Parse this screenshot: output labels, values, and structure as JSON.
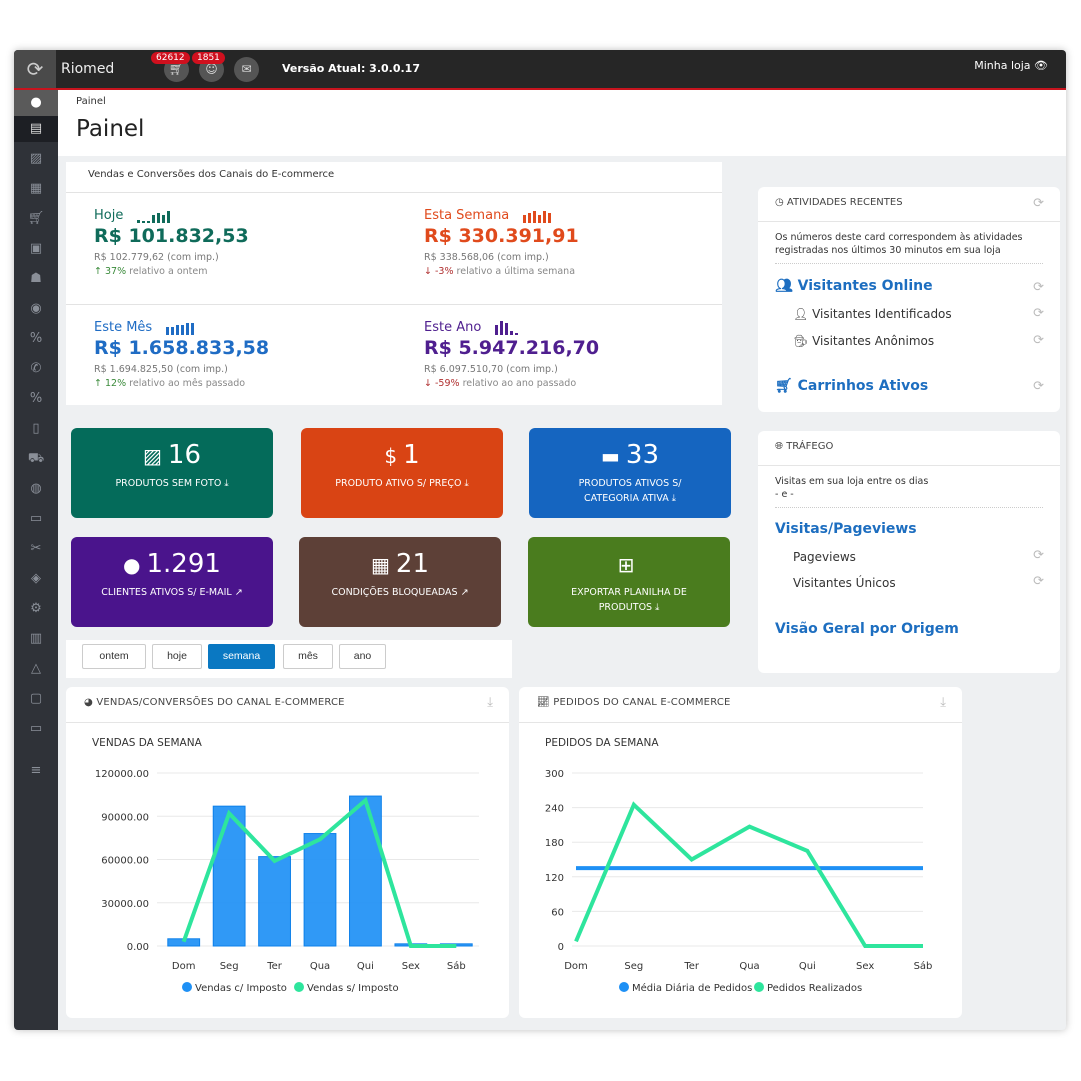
{
  "topbar": {
    "brand": "Riomed",
    "cart_badge": "62612",
    "user_badge": "1851",
    "version": "Versão Atual: 3.0.0.17",
    "store_link": "Minha loja"
  },
  "header": {
    "breadcrumb": "Painel",
    "title": "Painel"
  },
  "sales": {
    "title": "Vendas e Conversões dos Canais do E-commerce",
    "kpis": [
      {
        "label": "Hoje",
        "value": "R$ 101.832,53",
        "with_tax": "R$ 102.779,62 (com imp.)",
        "pct": "37%",
        "relative": "relativo a ontem",
        "trend": "up",
        "color": "#0f6b5a"
      },
      {
        "label": "Esta Semana",
        "value": "R$ 330.391,91",
        "with_tax": "R$ 338.568,06 (com imp.)",
        "pct": "-3%",
        "relative": "relativo a última semana",
        "trend": "down",
        "color": "#e04a1c"
      },
      {
        "label": "Este Mês",
        "value": "R$ 1.658.833,58",
        "with_tax": "R$ 1.694.825,50 (com imp.)",
        "pct": "12%",
        "relative": "relativo ao mês passado",
        "trend": "up",
        "color": "#1f6cc4"
      },
      {
        "label": "Este Ano",
        "value": "R$ 5.947.216,70",
        "with_tax": "R$ 6.097.510,70 (com imp.)",
        "pct": "-59%",
        "relative": "relativo ao ano passado",
        "trend": "down",
        "color": "#4f1f8f"
      }
    ]
  },
  "tiles": [
    {
      "value": "16",
      "label": "PRODUTOS SEM FOTO",
      "icon": "image-icon",
      "color": "#046b5a"
    },
    {
      "value": "1",
      "label": "PRODUTO ATIVO S/ PREÇO",
      "icon": "dollar-icon",
      "color": "#d94414"
    },
    {
      "value": "33",
      "label": "PRODUTOS ATIVOS S/ CATEGORIA ATIVA",
      "icon": "archive-icon",
      "color": "#1565c0"
    },
    {
      "value": "1.291",
      "label": "CLIENTES ATIVOS S/ E-MAIL",
      "icon": "user-icon",
      "color": "#4a148c"
    },
    {
      "value": "21",
      "label": "CONDIÇÕES BLOQUEADAS",
      "icon": "calendar-icon",
      "color": "#5d4037"
    },
    {
      "value": "",
      "label": "EXPORTAR PLANILHA DE PRODUTOS",
      "icon": "table-icon",
      "color": "#4a7c1e"
    }
  ],
  "filters": [
    "ontem",
    "hoje",
    "semana",
    "mês",
    "ano"
  ],
  "active_filter": "semana",
  "recent": {
    "title": "ATIVIDADES RECENTES",
    "note": "Os números deste card correspondem às atividades registradas nos últimos 30 minutos em sua loja",
    "online": "Visitantes Online",
    "identified": "Visitantes Identificados",
    "anonymous": "Visitantes Anônimos",
    "carts": "Carrinhos Ativos"
  },
  "traffic": {
    "title": "TRÁFEGO",
    "note": "Visitas em sua loja entre os dias",
    "range": "- e -",
    "visits": "Visitas/Pageviews",
    "pageviews": "Pageviews",
    "unique": "Visitantes Únicos",
    "origin": "Visão Geral por Origem"
  },
  "chart_data": [
    {
      "type": "bar",
      "panel_title": "VENDAS/CONVERSÕES DO CANAL E-COMMERCE",
      "title": "VENDAS DA SEMANA",
      "categories": [
        "Dom",
        "Seg",
        "Ter",
        "Qua",
        "Qui",
        "Sex",
        "Sáb"
      ],
      "series": [
        {
          "name": "Vendas c/ Imposto",
          "kind": "bar",
          "color": "#1e90f5",
          "values": [
            5000,
            97000,
            62000,
            78000,
            104000,
            1500,
            1500
          ]
        },
        {
          "name": "Vendas s/ Imposto",
          "kind": "line",
          "color": "#2ee59d",
          "values": [
            3000,
            92000,
            59000,
            74000,
            101000,
            0,
            0
          ]
        }
      ],
      "ylim": [
        0,
        120000
      ],
      "yticks": [
        "0.00",
        "30000.00",
        "60000.00",
        "90000.00",
        "120000.00"
      ],
      "legend": "bottom"
    },
    {
      "type": "line",
      "panel_title": "PEDIDOS DO CANAL E-COMMERCE",
      "title": "PEDIDOS DA SEMANA",
      "categories": [
        "Dom",
        "Seg",
        "Ter",
        "Qua",
        "Qui",
        "Sex",
        "Sáb"
      ],
      "series": [
        {
          "name": "Média Diária de Pedidos",
          "color": "#1e90f5",
          "values": [
            135,
            135,
            135,
            135,
            135,
            135,
            135
          ]
        },
        {
          "name": "Pedidos Realizados",
          "color": "#2ee59d",
          "values": [
            8,
            245,
            150,
            207,
            165,
            0,
            0
          ]
        }
      ],
      "ylim": [
        0,
        300
      ],
      "yticks": [
        "0",
        "60",
        "120",
        "180",
        "240",
        "300"
      ],
      "legend": "bottom"
    }
  ]
}
